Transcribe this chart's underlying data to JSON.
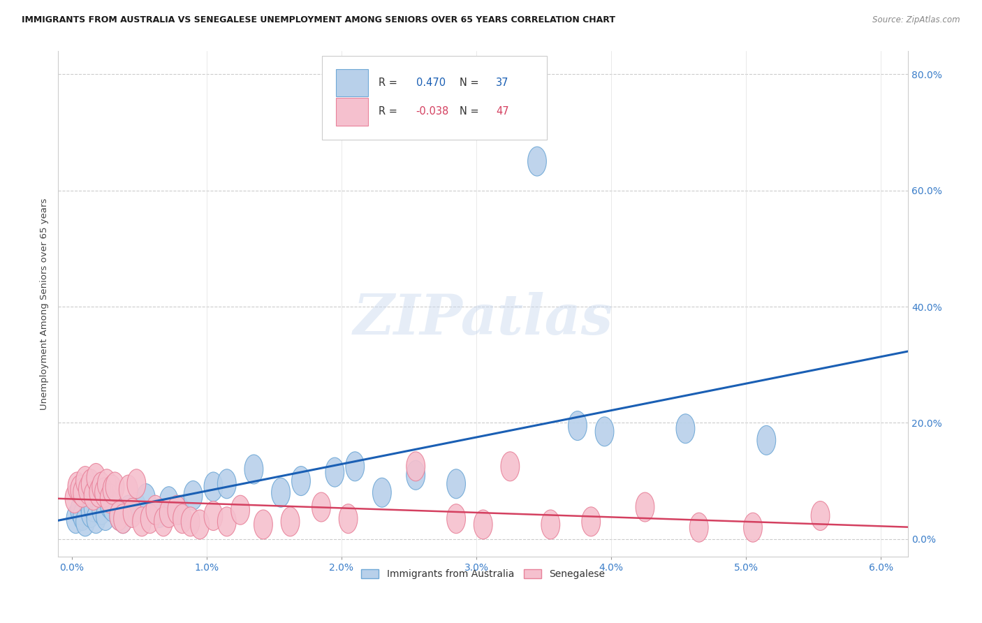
{
  "title": "IMMIGRANTS FROM AUSTRALIA VS SENEGALESE UNEMPLOYMENT AMONG SENIORS OVER 65 YEARS CORRELATION CHART",
  "source": "Source: ZipAtlas.com",
  "xlabel_vals": [
    0.0,
    1.0,
    2.0,
    3.0,
    4.0,
    5.0,
    6.0
  ],
  "ylabel_vals": [
    0.0,
    20.0,
    40.0,
    60.0,
    80.0
  ],
  "ylabel_label": "Unemployment Among Seniors over 65 years",
  "legend_label_bottom": [
    "Immigrants from Australia",
    "Senegalese"
  ],
  "blue_fill": "#b8d0ea",
  "blue_edge": "#6fa8d6",
  "pink_fill": "#f5c0ce",
  "pink_edge": "#e8829a",
  "trendline_blue": "#1a5fb4",
  "trendline_pink": "#d44060",
  "watermark": "ZIPatlas",
  "blue_points": [
    [
      0.03,
      3.5
    ],
    [
      0.06,
      5.0
    ],
    [
      0.08,
      4.0
    ],
    [
      0.1,
      3.0
    ],
    [
      0.12,
      6.5
    ],
    [
      0.14,
      4.5
    ],
    [
      0.16,
      5.5
    ],
    [
      0.18,
      3.5
    ],
    [
      0.2,
      7.0
    ],
    [
      0.22,
      5.0
    ],
    [
      0.25,
      4.0
    ],
    [
      0.28,
      6.0
    ],
    [
      0.3,
      5.5
    ],
    [
      0.35,
      4.0
    ],
    [
      0.38,
      3.5
    ],
    [
      0.42,
      5.0
    ],
    [
      0.48,
      5.5
    ],
    [
      0.55,
      7.0
    ],
    [
      0.65,
      4.5
    ],
    [
      0.72,
      6.5
    ],
    [
      0.8,
      5.0
    ],
    [
      0.9,
      7.5
    ],
    [
      1.05,
      9.0
    ],
    [
      1.15,
      9.5
    ],
    [
      1.35,
      12.0
    ],
    [
      1.55,
      8.0
    ],
    [
      1.7,
      10.0
    ],
    [
      1.95,
      11.5
    ],
    [
      2.1,
      12.5
    ],
    [
      2.3,
      8.0
    ],
    [
      2.55,
      11.0
    ],
    [
      2.85,
      9.5
    ],
    [
      3.45,
      65.0
    ],
    [
      3.75,
      19.5
    ],
    [
      3.95,
      18.5
    ],
    [
      4.55,
      19.0
    ],
    [
      5.15,
      17.0
    ]
  ],
  "pink_points": [
    [
      0.02,
      7.0
    ],
    [
      0.04,
      9.0
    ],
    [
      0.06,
      8.5
    ],
    [
      0.08,
      8.0
    ],
    [
      0.1,
      10.0
    ],
    [
      0.12,
      8.5
    ],
    [
      0.14,
      9.5
    ],
    [
      0.16,
      7.5
    ],
    [
      0.18,
      10.5
    ],
    [
      0.2,
      8.0
    ],
    [
      0.22,
      9.0
    ],
    [
      0.24,
      8.0
    ],
    [
      0.26,
      9.5
    ],
    [
      0.28,
      7.0
    ],
    [
      0.3,
      8.5
    ],
    [
      0.32,
      9.0
    ],
    [
      0.35,
      4.0
    ],
    [
      0.38,
      3.5
    ],
    [
      0.42,
      8.5
    ],
    [
      0.45,
      4.5
    ],
    [
      0.48,
      9.5
    ],
    [
      0.52,
      3.0
    ],
    [
      0.58,
      3.5
    ],
    [
      0.62,
      5.0
    ],
    [
      0.68,
      3.0
    ],
    [
      0.72,
      4.5
    ],
    [
      0.78,
      5.0
    ],
    [
      0.82,
      3.5
    ],
    [
      0.88,
      3.0
    ],
    [
      0.95,
      2.5
    ],
    [
      1.05,
      4.0
    ],
    [
      1.15,
      3.0
    ],
    [
      1.25,
      5.0
    ],
    [
      1.42,
      2.5
    ],
    [
      1.62,
      3.0
    ],
    [
      1.85,
      5.5
    ],
    [
      2.05,
      3.5
    ],
    [
      2.55,
      12.5
    ],
    [
      2.85,
      3.5
    ],
    [
      3.05,
      2.5
    ],
    [
      3.25,
      12.5
    ],
    [
      3.55,
      2.5
    ],
    [
      3.85,
      3.0
    ],
    [
      4.25,
      5.5
    ],
    [
      4.65,
      2.0
    ],
    [
      5.05,
      2.0
    ],
    [
      5.55,
      4.0
    ]
  ],
  "xmin": -0.1,
  "xmax": 6.2,
  "ymin": -3.0,
  "ymax": 84.0
}
